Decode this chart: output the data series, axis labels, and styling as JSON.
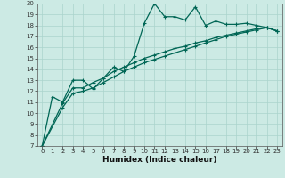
{
  "title": "",
  "xlabel": "Humidex (Indice chaleur)",
  "ylabel": "",
  "xlim": [
    -0.5,
    23.5
  ],
  "ylim": [
    7,
    20
  ],
  "xticks": [
    0,
    1,
    2,
    3,
    4,
    5,
    6,
    7,
    8,
    9,
    10,
    11,
    12,
    13,
    14,
    15,
    16,
    17,
    18,
    19,
    20,
    21,
    22,
    23
  ],
  "yticks": [
    7,
    8,
    9,
    10,
    11,
    12,
    13,
    14,
    15,
    16,
    17,
    18,
    19,
    20
  ],
  "background_color": "#cceae4",
  "grid_color": "#aad4cc",
  "line_color": "#006655",
  "line1_x": [
    0,
    1,
    2,
    3,
    4,
    5,
    6,
    7,
    8,
    9,
    10,
    11,
    12,
    13,
    14,
    15,
    16,
    17,
    18,
    19,
    20,
    21,
    22,
    23
  ],
  "line1_y": [
    7.0,
    11.5,
    11.0,
    13.0,
    13.0,
    12.2,
    13.2,
    14.2,
    13.8,
    15.2,
    18.2,
    20.0,
    18.8,
    18.8,
    18.5,
    19.7,
    18.0,
    18.4,
    18.1,
    18.1,
    18.2,
    18.0,
    17.8,
    17.5
  ],
  "line2_x": [
    0,
    2,
    3,
    4,
    5,
    6,
    7,
    8,
    9,
    10,
    11,
    12,
    13,
    14,
    15,
    16,
    17,
    18,
    19,
    20,
    21,
    22,
    23
  ],
  "line2_y": [
    7.0,
    10.9,
    12.3,
    12.3,
    12.8,
    13.2,
    13.8,
    14.2,
    14.6,
    15.0,
    15.3,
    15.6,
    15.9,
    16.1,
    16.4,
    16.6,
    16.9,
    17.1,
    17.3,
    17.5,
    17.7,
    17.8,
    17.5
  ],
  "line3_x": [
    0,
    2,
    3,
    4,
    5,
    6,
    7,
    8,
    9,
    10,
    11,
    12,
    13,
    14,
    15,
    16,
    17,
    18,
    19,
    20,
    21,
    22,
    23
  ],
  "line3_y": [
    7.0,
    10.5,
    11.8,
    12.0,
    12.3,
    12.8,
    13.3,
    13.8,
    14.2,
    14.6,
    14.9,
    15.2,
    15.5,
    15.8,
    16.1,
    16.4,
    16.7,
    17.0,
    17.2,
    17.4,
    17.6,
    17.8,
    17.5
  ],
  "marker": "+",
  "markersize": 3.0,
  "linewidth": 0.9,
  "axis_fontsize": 6.5,
  "tick_fontsize": 5.0
}
